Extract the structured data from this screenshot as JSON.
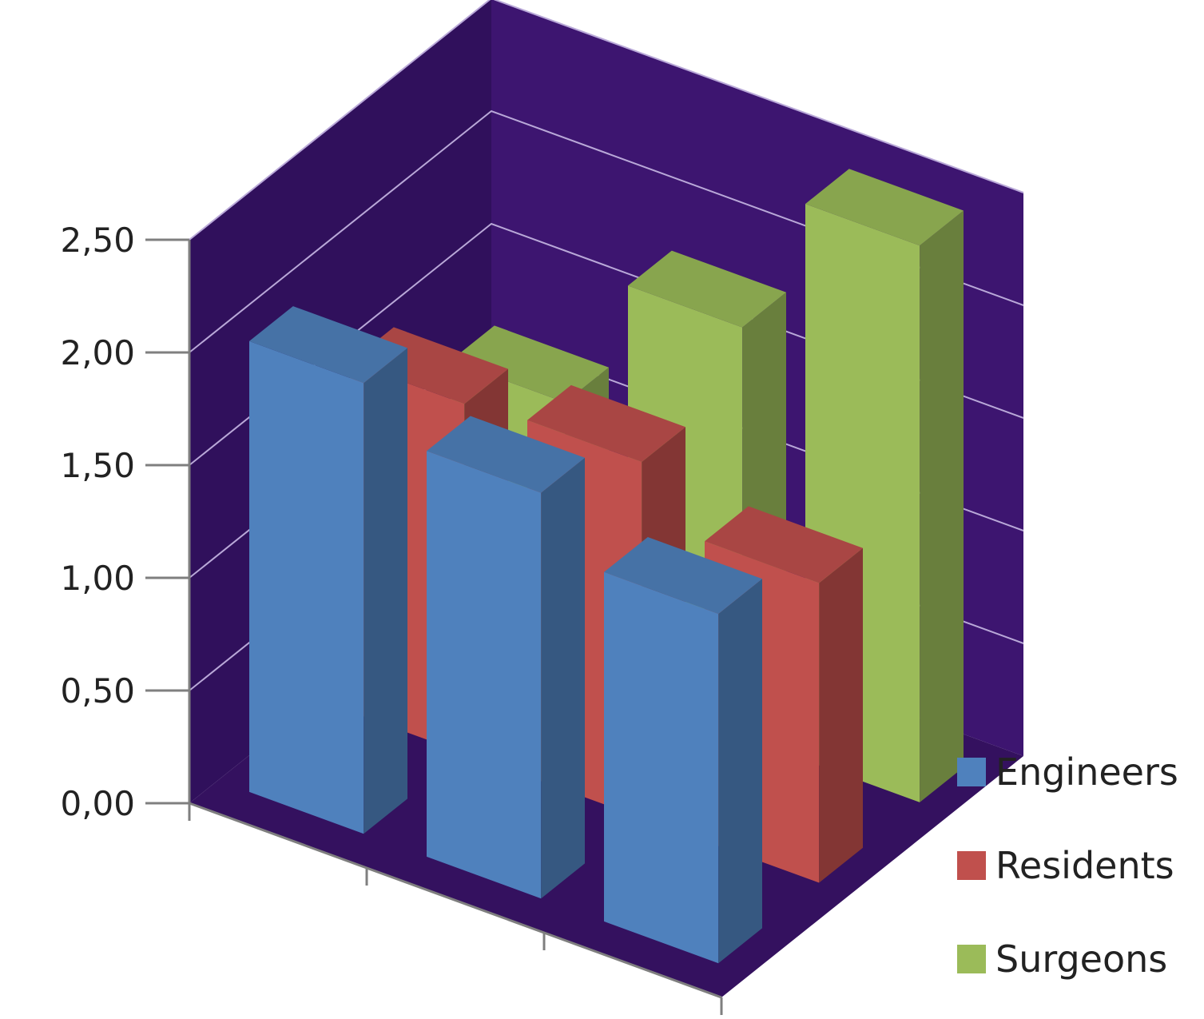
{
  "chart_data": {
    "type": "bar",
    "style": "3d-column",
    "categories": [
      "",
      "",
      ""
    ],
    "y_ticks": [
      "0,00",
      "0,50",
      "1,00",
      "1,50",
      "2,00",
      "2,50"
    ],
    "ylim": [
      0,
      2.5
    ],
    "grid": true,
    "legend_position": "right-bottom",
    "series": [
      {
        "name": "Engineers",
        "values": [
          2.0,
          1.8,
          1.55
        ]
      },
      {
        "name": "Residents",
        "values": [
          1.55,
          1.58,
          1.33
        ]
      },
      {
        "name": "Surgeons",
        "values": [
          1.2,
          1.82,
          2.47
        ]
      }
    ]
  },
  "colors": {
    "Engineers": "#4f81bd",
    "Residents": "#c0504d",
    "Surgeons": "#9bbb59",
    "wall": "#3d1570",
    "wall_dark": "#30105c",
    "floor": "#34115f",
    "gridline": "#b9a8d8",
    "axis": "#7f7f7f"
  }
}
